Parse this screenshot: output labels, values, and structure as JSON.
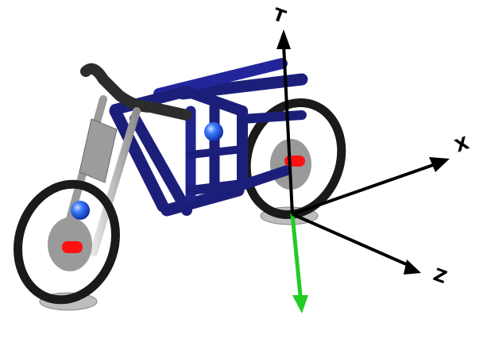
{
  "scene": {
    "background": "#ffffff",
    "axes": [
      {
        "key": "T",
        "label": "T",
        "color": "#000000"
      },
      {
        "key": "X",
        "label": "X",
        "color": "#000000"
      },
      {
        "key": "Z",
        "label": "Z",
        "color": "#000000"
      }
    ],
    "gravity_vector": {
      "color": "#22cc22"
    },
    "colors": {
      "frame_tube": "#1c1f7a",
      "frame_highlight": "#3a3fb8",
      "fork_metal": "#b8b8b8",
      "tire": "#1a1a1a",
      "hub_disc": "#9a9a9a",
      "axle": "#ff1010",
      "ground_contact": "#bdbdbd",
      "handlebar": "#2c2c2c",
      "marker_ball": "#1f5cff"
    }
  }
}
